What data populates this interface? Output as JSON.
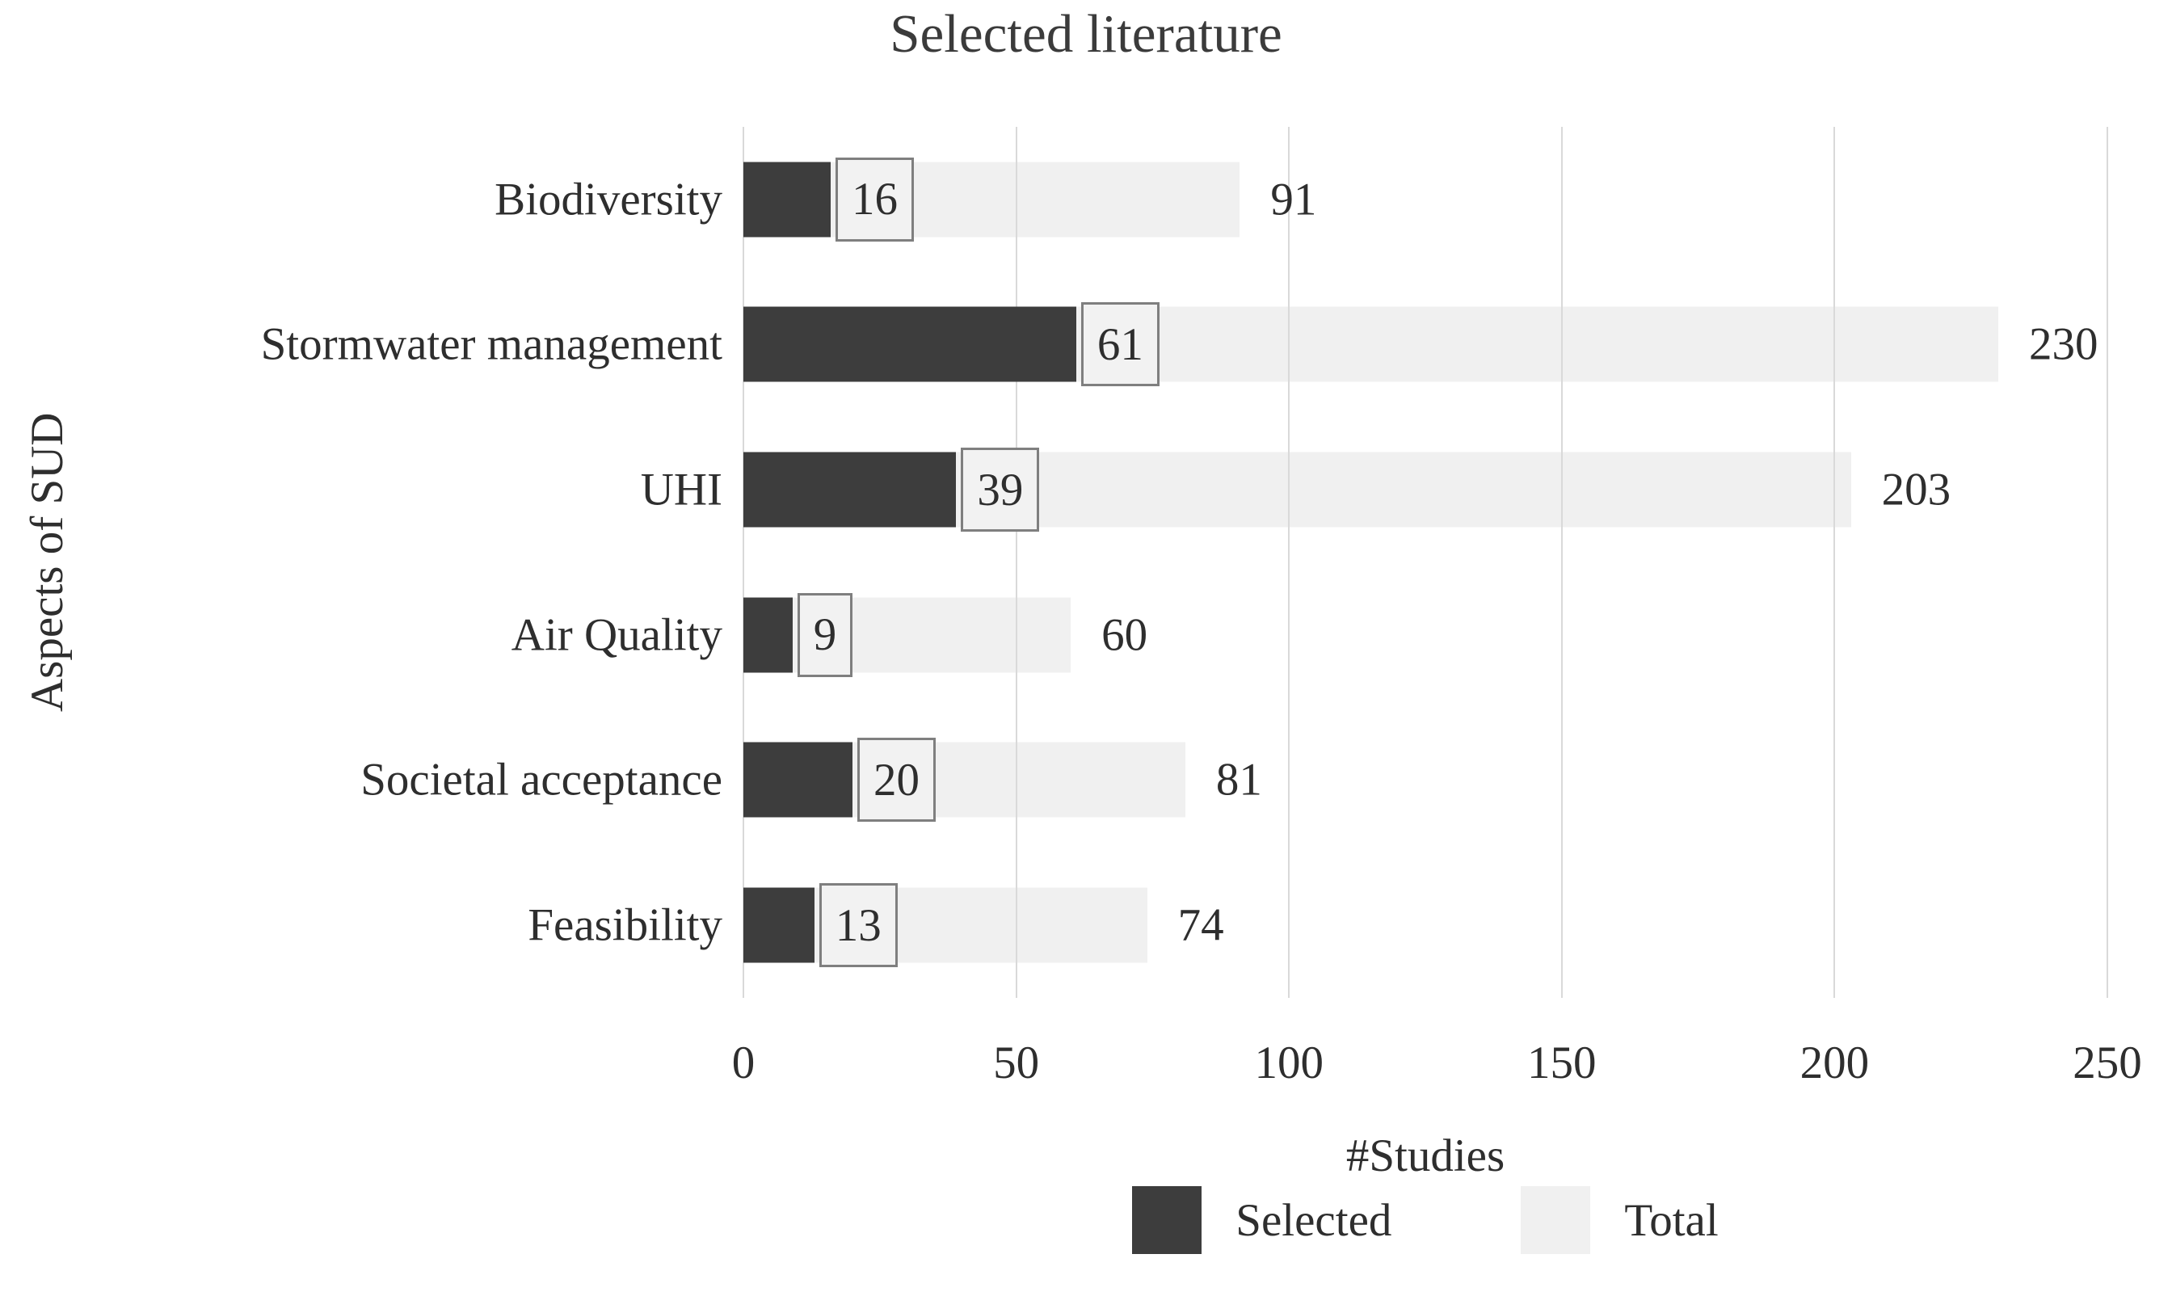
{
  "title": "Selected literature",
  "ylabel": "Aspects of SUD",
  "xlabel": "#Studies",
  "legend": {
    "selected_label": "Selected",
    "total_label": "Total"
  },
  "colors": {
    "selected": "#3d3d3d",
    "total": "#f0f0f0",
    "grid": "#d9d9d9",
    "label_box_bg": "#f2f2f2",
    "label_box_border": "#7f7f7f",
    "text": "#2e2e2e"
  },
  "chart_data": {
    "type": "bar",
    "orientation": "horizontal",
    "title": "Selected literature",
    "xlabel": "#Studies",
    "ylabel": "Aspects of SUD",
    "xlim": [
      0,
      250
    ],
    "xticks": [
      0,
      50,
      100,
      150,
      200,
      250
    ],
    "grid": true,
    "legend_position": "bottom",
    "categories": [
      "Biodiversity",
      "Stormwater management",
      "UHI",
      "Air Quality",
      "Societal acceptance",
      "Feasibility"
    ],
    "series": [
      {
        "name": "Selected",
        "values": [
          16,
          61,
          39,
          9,
          20,
          13
        ]
      },
      {
        "name": "Total",
        "values": [
          91,
          230,
          203,
          60,
          81,
          74
        ]
      }
    ]
  }
}
